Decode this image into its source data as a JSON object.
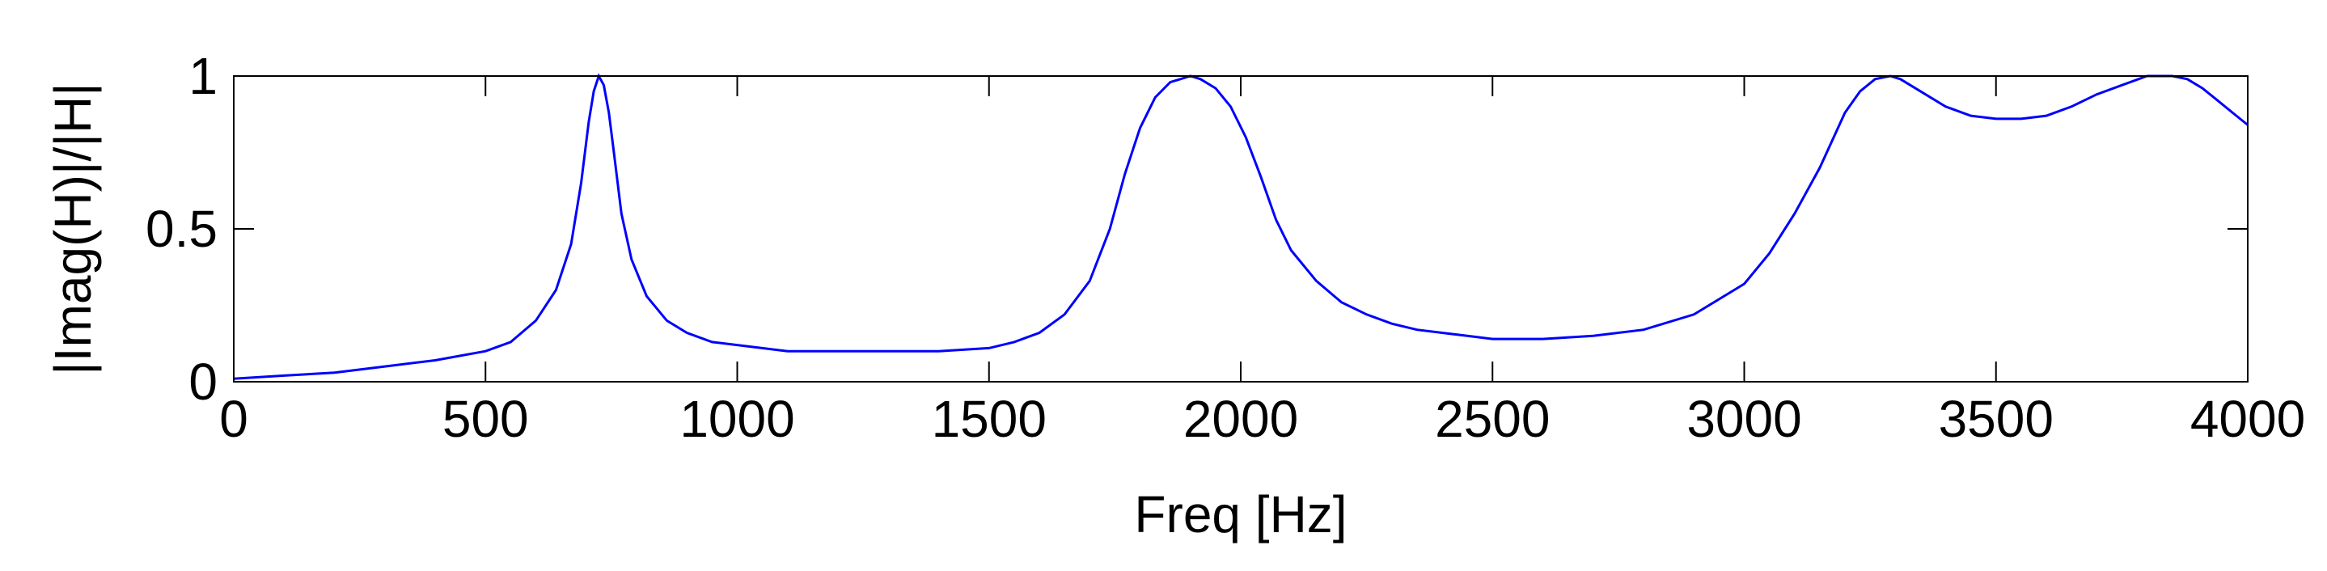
{
  "chart_data": {
    "type": "line",
    "title": "",
    "xlabel": "Freq [Hz]",
    "ylabel": "|Imag(H)|/|H|",
    "xlim": [
      0,
      4000
    ],
    "ylim": [
      0,
      1
    ],
    "x_ticks": [
      0,
      500,
      1000,
      1500,
      2000,
      2500,
      3000,
      3500,
      4000
    ],
    "y_ticks": [
      0,
      0.5,
      1
    ],
    "x_tick_labels": [
      "0",
      "500",
      "1000",
      "1500",
      "2000",
      "2500",
      "3000",
      "3500",
      "4000"
    ],
    "y_tick_labels": [
      "0",
      "0.5",
      "1"
    ],
    "grid": false,
    "line_color": "#0000ff",
    "series": [
      {
        "x": [
          0,
          100,
          200,
          300,
          400,
          500,
          550,
          600,
          640,
          670,
          690,
          705,
          715,
          725,
          735,
          745,
          755,
          770,
          790,
          820,
          860,
          900,
          950,
          1000,
          1100,
          1200,
          1300,
          1400,
          1500,
          1550,
          1600,
          1650,
          1700,
          1740,
          1770,
          1800,
          1830,
          1860,
          1880,
          1900,
          1920,
          1950,
          1980,
          2010,
          2040,
          2070,
          2100,
          2150,
          2200,
          2250,
          2300,
          2350,
          2400,
          2450,
          2500,
          2600,
          2700,
          2800,
          2900,
          3000,
          3050,
          3100,
          3150,
          3200,
          3230,
          3260,
          3290,
          3310,
          3330,
          3360,
          3400,
          3450,
          3500,
          3550,
          3600,
          3650,
          3700,
          3750,
          3800,
          3850,
          3880,
          3910,
          3940,
          3970,
          4000
        ],
        "y": [
          0.01,
          0.02,
          0.03,
          0.05,
          0.07,
          0.1,
          0.13,
          0.2,
          0.3,
          0.45,
          0.65,
          0.85,
          0.95,
          1.0,
          0.97,
          0.88,
          0.75,
          0.55,
          0.4,
          0.28,
          0.2,
          0.16,
          0.13,
          0.12,
          0.1,
          0.1,
          0.1,
          0.1,
          0.11,
          0.13,
          0.16,
          0.22,
          0.33,
          0.5,
          0.68,
          0.83,
          0.93,
          0.98,
          0.99,
          1.0,
          0.99,
          0.96,
          0.9,
          0.8,
          0.67,
          0.53,
          0.43,
          0.33,
          0.26,
          0.22,
          0.19,
          0.17,
          0.16,
          0.15,
          0.14,
          0.14,
          0.15,
          0.17,
          0.22,
          0.32,
          0.42,
          0.55,
          0.7,
          0.88,
          0.95,
          0.99,
          1.0,
          0.99,
          0.97,
          0.94,
          0.9,
          0.87,
          0.86,
          0.86,
          0.87,
          0.9,
          0.94,
          0.97,
          1.0,
          1.0,
          0.99,
          0.96,
          0.92,
          0.88,
          0.84
        ]
      }
    ]
  }
}
